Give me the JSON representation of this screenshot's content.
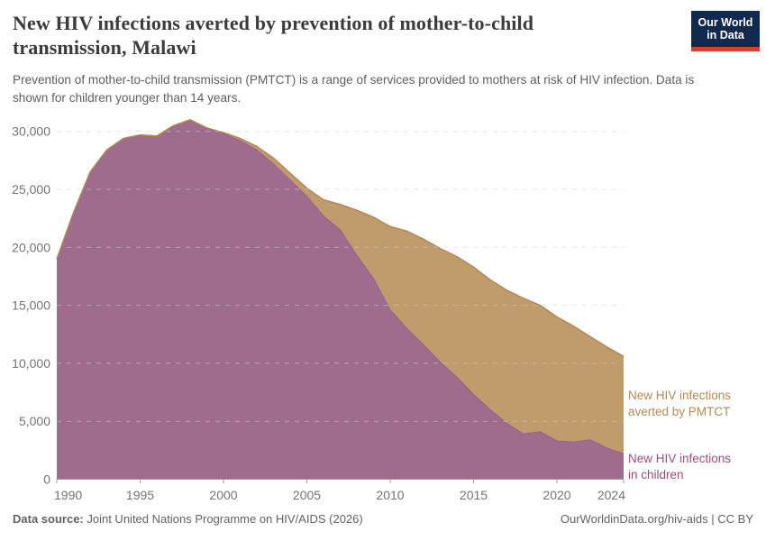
{
  "header": {
    "title": "New HIV infections averted by prevention of mother-to-child transmission, Malawi",
    "subtitle": "Prevention of mother-to-child transmission (PMTCT) is a range of services provided to mothers at risk of HIV infection. Data is shown for children younger than 14 years.",
    "logo": {
      "line1": "Our World",
      "line2": "in Data",
      "bg_color": "#12294f",
      "accent_color": "#dc3d33"
    }
  },
  "chart_data": {
    "type": "area",
    "stacked": true,
    "title": "New HIV infections averted by prevention of mother-to-child transmission, Malawi",
    "xlabel": "",
    "ylabel": "",
    "xlim": [
      1990,
      2024
    ],
    "ylim": [
      0,
      30000
    ],
    "grid": "horizontal-dashed",
    "legend_position": "right-of-area-end-labels",
    "x": [
      1990,
      1991,
      1992,
      1993,
      1994,
      1995,
      1996,
      1997,
      1998,
      1999,
      2000,
      2001,
      2002,
      2003,
      2004,
      2005,
      2006,
      2007,
      2008,
      2009,
      2010,
      2011,
      2012,
      2013,
      2014,
      2015,
      2016,
      2017,
      2018,
      2019,
      2020,
      2021,
      2022,
      2023,
      2024
    ],
    "series": [
      {
        "name": "New HIV infections in children",
        "label": "New HIV infections\nin children",
        "color": "#a06c8e",
        "edge_color": "#96618a",
        "label_color": "#9c4d76",
        "values": [
          19000,
          23000,
          26500,
          28400,
          29400,
          29700,
          29600,
          30500,
          31000,
          30300,
          29800,
          29200,
          28400,
          27200,
          25800,
          24400,
          22700,
          21500,
          19300,
          17300,
          14600,
          13000,
          11600,
          10100,
          8800,
          7300,
          6000,
          4800,
          3900,
          4100,
          3300,
          3200,
          3400,
          2700,
          2200
        ]
      },
      {
        "name": "New HIV infections averted by PMTCT",
        "label": "New HIV infections\naverted by PMTCT",
        "color": "#c09b6b",
        "edge_color": "#b18655",
        "label_color": "#b28957",
        "values": [
          0,
          0,
          0,
          0,
          0,
          0,
          0,
          0,
          0,
          0,
          100,
          200,
          300,
          500,
          600,
          700,
          1400,
          2200,
          3900,
          5300,
          7200,
          8400,
          9100,
          9800,
          10400,
          11000,
          11200,
          11500,
          11700,
          10900,
          10700,
          10000,
          8900,
          8700,
          8400
        ]
      }
    ],
    "xticks": [
      {
        "year": 1990,
        "label": "1990"
      },
      {
        "year": 1995,
        "label": "1995"
      },
      {
        "year": 2000,
        "label": "2000"
      },
      {
        "year": 2005,
        "label": "2005"
      },
      {
        "year": 2010,
        "label": "2010"
      },
      {
        "year": 2015,
        "label": "2015"
      },
      {
        "year": 2020,
        "label": "2020"
      },
      {
        "year": 2024,
        "label": "2024"
      }
    ],
    "yticks": [
      {
        "value": 0,
        "label": "0"
      },
      {
        "value": 5000,
        "label": "5,000"
      },
      {
        "value": 10000,
        "label": "10,000"
      },
      {
        "value": 15000,
        "label": "15,000"
      },
      {
        "value": 20000,
        "label": "20,000"
      },
      {
        "value": 25000,
        "label": "25,000"
      },
      {
        "value": 30000,
        "label": "30,000"
      }
    ],
    "axis_color": "#9b9b9b",
    "tick_label_color": "#737373",
    "gridline_color": "#cfcfcf"
  },
  "footer": {
    "datasource_label": "Data source:",
    "datasource_value": " Joint United Nations Programme on HIV/AIDS (2026)",
    "rights": "OurWorldinData.org/hiv-aids | CC BY"
  }
}
